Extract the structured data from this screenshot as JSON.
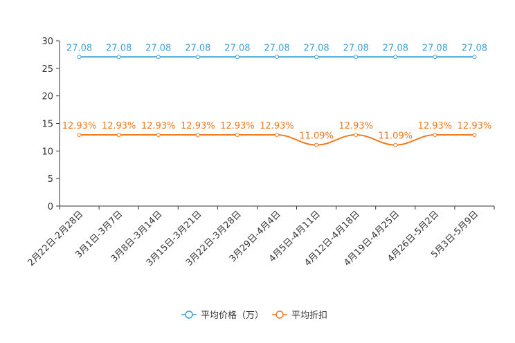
{
  "chart_data": {
    "type": "line",
    "title": "",
    "xlabel": "",
    "ylabel": "",
    "ylim": [
      0,
      30
    ],
    "yticks": [
      0,
      5,
      10,
      15,
      20,
      25,
      30
    ],
    "grid": false,
    "legend_position": "bottom-center",
    "categories": [
      "2月22日-2月28日",
      "3月1日-3月7日",
      "3月8日-3月14日",
      "3月15日-3月21日",
      "3月22日-3月28日",
      "3月29日-4月4日",
      "4月5日-4月11日",
      "4月12日-4月18日",
      "4月19日-4月25日",
      "4月26日-5月2日",
      "5月3日-5月9日"
    ],
    "series": [
      {
        "name": "平均价格（万）",
        "color": "#3fa0d6",
        "smooth": false,
        "values": [
          27.08,
          27.08,
          27.08,
          27.08,
          27.08,
          27.08,
          27.08,
          27.08,
          27.08,
          27.08,
          27.08
        ],
        "labels": [
          "27.08",
          "27.08",
          "27.08",
          "27.08",
          "27.08",
          "27.08",
          "27.08",
          "27.08",
          "27.08",
          "27.08",
          "27.08"
        ]
      },
      {
        "name": "平均折扣",
        "color": "#f47a1f",
        "smooth": true,
        "values": [
          12.93,
          12.93,
          12.93,
          12.93,
          12.93,
          12.93,
          11.09,
          12.93,
          11.09,
          12.93,
          12.93
        ],
        "labels": [
          "12.93%",
          "12.93%",
          "12.93%",
          "12.93%",
          "12.93%",
          "12.93%",
          "11.09%",
          "12.93%",
          "11.09%",
          "12.93%",
          "12.93%"
        ]
      }
    ]
  }
}
